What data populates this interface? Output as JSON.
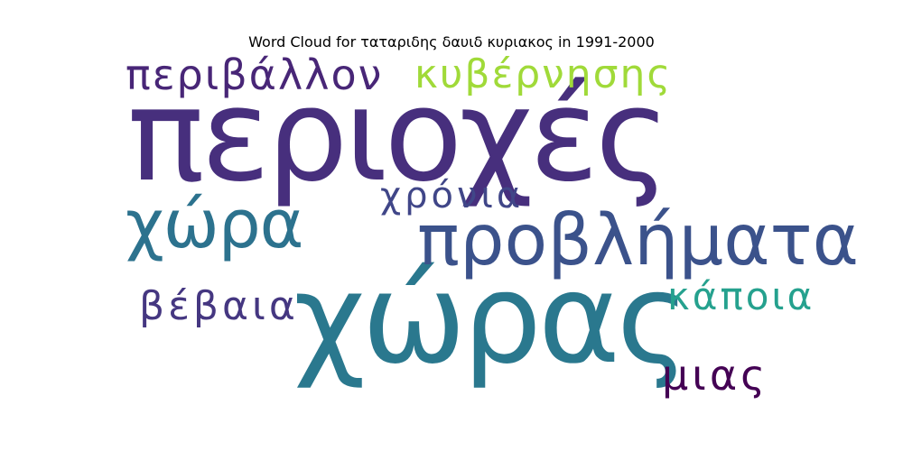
{
  "chart_data": {
    "type": "wordcloud",
    "title": "Word Cloud for ταταριδης δαυιδ κυριακος in 1991-2000",
    "words": [
      {
        "text": "περιοχές",
        "weight": 1.0,
        "color": "#472f7d"
      },
      {
        "text": "χώρας",
        "weight": 0.85,
        "color": "#2a788e"
      },
      {
        "text": "προβλήματα",
        "weight": 0.5,
        "color": "#3b528b"
      },
      {
        "text": "χώρα",
        "weight": 0.45,
        "color": "#2c728e"
      },
      {
        "text": "περιβάλλον",
        "weight": 0.35,
        "color": "#482677"
      },
      {
        "text": "κυβέρνησης",
        "weight": 0.33,
        "color": "#a0da39"
      },
      {
        "text": "χρόνια",
        "weight": 0.3,
        "color": "#404688"
      },
      {
        "text": "βέβαια",
        "weight": 0.3,
        "color": "#453781"
      },
      {
        "text": "κάποια",
        "weight": 0.3,
        "color": "#25a18e"
      },
      {
        "text": "μιας",
        "weight": 0.3,
        "color": "#440154"
      }
    ]
  }
}
